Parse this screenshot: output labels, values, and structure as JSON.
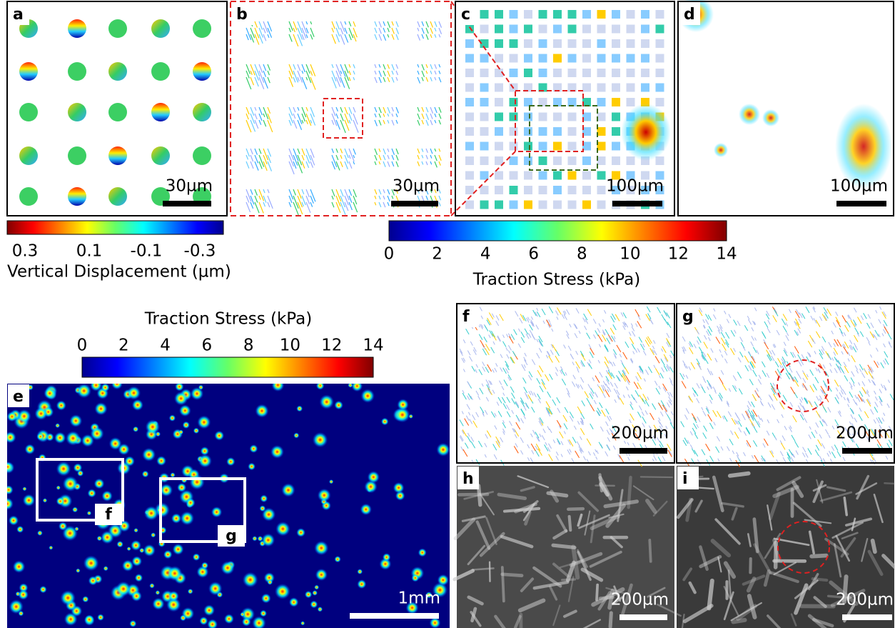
{
  "panels": [
    {
      "label": "a",
      "scale_bar": "30µm"
    },
    {
      "label": "b",
      "scale_bar": "30µm"
    },
    {
      "label": "c",
      "scale_bar": "100µm"
    },
    {
      "label": "d",
      "scale_bar": "100µm"
    },
    {
      "label": "e",
      "scale_bar": "1mm",
      "insets": [
        "f",
        "g"
      ]
    },
    {
      "label": "f",
      "scale_bar": "200µm"
    },
    {
      "label": "g",
      "scale_bar": "200µm"
    },
    {
      "label": "h",
      "scale_bar": "200µm"
    },
    {
      "label": "i",
      "scale_bar": "200µm"
    }
  ],
  "colorbars": [
    {
      "ticks": [
        "0.3",
        "0.1",
        "-0.1",
        "-0.3"
      ],
      "label": "Vertical Displacement (µm)"
    },
    {
      "ticks": [
        "0",
        "2",
        "4",
        "6",
        "8",
        "10",
        "12",
        "14"
      ],
      "label": "Traction Stress (kPa)"
    },
    {
      "ticks": [
        "0",
        "2",
        "4",
        "6",
        "8",
        "10",
        "12",
        "14"
      ],
      "label": "Traction Stress (kPa)"
    }
  ]
}
